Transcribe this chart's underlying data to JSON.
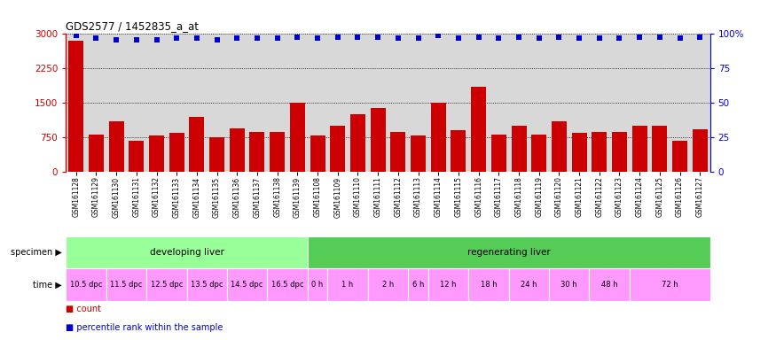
{
  "title": "GDS2577 / 1452835_a_at",
  "samples": [
    "GSM161128",
    "GSM161129",
    "GSM161130",
    "GSM161131",
    "GSM161132",
    "GSM161133",
    "GSM161134",
    "GSM161135",
    "GSM161136",
    "GSM161137",
    "GSM161138",
    "GSM161139",
    "GSM161108",
    "GSM161109",
    "GSM161110",
    "GSM161111",
    "GSM161112",
    "GSM161113",
    "GSM161114",
    "GSM161115",
    "GSM161116",
    "GSM161117",
    "GSM161118",
    "GSM161119",
    "GSM161120",
    "GSM161121",
    "GSM161122",
    "GSM161123",
    "GSM161124",
    "GSM161125",
    "GSM161126",
    "GSM161127"
  ],
  "counts": [
    2850,
    800,
    1100,
    680,
    780,
    850,
    1200,
    750,
    950,
    870,
    870,
    1500,
    780,
    1000,
    1250,
    1380,
    870,
    790,
    1500,
    900,
    1850,
    810,
    1000,
    810,
    1100,
    850,
    870,
    870,
    1000,
    1000,
    680,
    920
  ],
  "percentile_ranks": [
    99,
    97,
    96,
    96,
    96,
    97,
    97,
    96,
    97,
    97,
    97,
    98,
    97,
    98,
    98,
    98,
    97,
    97,
    99,
    97,
    98,
    97,
    98,
    97,
    98,
    97,
    97,
    97,
    98,
    98,
    97,
    98
  ],
  "specimen_groups": [
    {
      "label": "developing liver",
      "color": "#99ff99",
      "start": 0,
      "end": 12
    },
    {
      "label": "regenerating liver",
      "color": "#55cc55",
      "start": 12,
      "end": 32
    }
  ],
  "time_labels": [
    {
      "label": "10.5 dpc",
      "start": 0,
      "end": 2
    },
    {
      "label": "11.5 dpc",
      "start": 2,
      "end": 4
    },
    {
      "label": "12.5 dpc",
      "start": 4,
      "end": 6
    },
    {
      "label": "13.5 dpc",
      "start": 6,
      "end": 8
    },
    {
      "label": "14.5 dpc",
      "start": 8,
      "end": 10
    },
    {
      "label": "16.5 dpc",
      "start": 10,
      "end": 12
    },
    {
      "label": "0 h",
      "start": 12,
      "end": 13
    },
    {
      "label": "1 h",
      "start": 13,
      "end": 15
    },
    {
      "label": "2 h",
      "start": 15,
      "end": 17
    },
    {
      "label": "6 h",
      "start": 17,
      "end": 18
    },
    {
      "label": "12 h",
      "start": 18,
      "end": 20
    },
    {
      "label": "18 h",
      "start": 20,
      "end": 22
    },
    {
      "label": "24 h",
      "start": 22,
      "end": 24
    },
    {
      "label": "30 h",
      "start": 24,
      "end": 26
    },
    {
      "label": "48 h",
      "start": 26,
      "end": 28
    },
    {
      "label": "72 h",
      "start": 28,
      "end": 32
    }
  ],
  "time_color": "#ff99ff",
  "bar_color": "#cc0000",
  "dot_color": "#0000cc",
  "ylim_left": [
    0,
    3000
  ],
  "ylim_right": [
    0,
    100
  ],
  "yticks_left": [
    0,
    750,
    1500,
    2250,
    3000
  ],
  "yticks_right": [
    0,
    25,
    50,
    75,
    100
  ],
  "bg_color": "#ffffff",
  "plot_bg_color": "#d8d8d8",
  "grid_color": "#000000"
}
